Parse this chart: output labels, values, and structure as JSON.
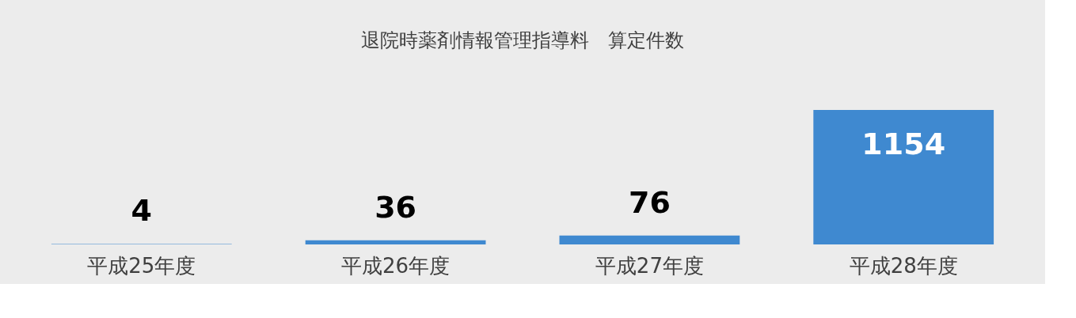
{
  "chart_data": {
    "type": "bar",
    "title": "退院時薬剤情報管理指導料　算定件数",
    "categories": [
      "平成25年度",
      "平成26年度",
      "平成27年度",
      "平成28年度"
    ],
    "values": [
      4,
      36,
      76,
      1154
    ],
    "color": "#3f89d0",
    "data_labels": true
  }
}
